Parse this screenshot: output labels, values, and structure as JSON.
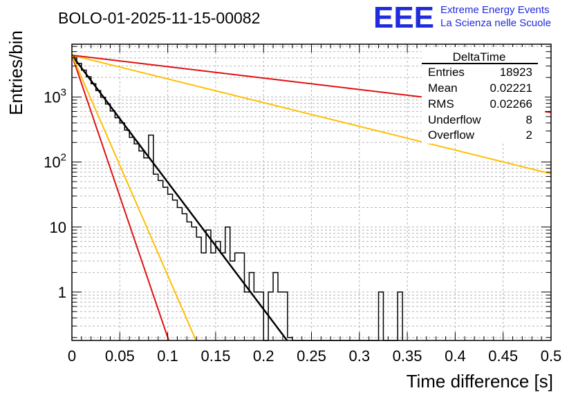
{
  "chart_data": {
    "type": "histogram",
    "title": "BOLO-01-2025-11-15-00082",
    "xlabel": "Time difference [s]",
    "ylabel": "Entries/bin",
    "xlim": [
      0,
      0.5
    ],
    "ylim": [
      0.18,
      6500
    ],
    "yscale": "log",
    "grid": true,
    "x_ticks": [
      {
        "value": 0,
        "label": "0"
      },
      {
        "value": 0.05,
        "label": "0.05"
      },
      {
        "value": 0.1,
        "label": "0.1"
      },
      {
        "value": 0.15,
        "label": "0.15"
      },
      {
        "value": 0.2,
        "label": "0.2"
      },
      {
        "value": 0.25,
        "label": "0.25"
      },
      {
        "value": 0.3,
        "label": "0.3"
      },
      {
        "value": 0.35,
        "label": "0.35"
      },
      {
        "value": 0.4,
        "label": "0.4"
      },
      {
        "value": 0.45,
        "label": "0.45"
      },
      {
        "value": 0.5,
        "label": "0.5"
      }
    ],
    "y_ticks": [
      {
        "value": 1,
        "label": "1"
      },
      {
        "value": 10,
        "label": "10"
      },
      {
        "value": 100,
        "label": "10",
        "exponent": "2"
      },
      {
        "value": 1000,
        "label": "10",
        "exponent": "3"
      }
    ],
    "histogram": {
      "name": "DeltaTime",
      "bin_width": 0.005,
      "x_start": 0,
      "values": [
        4200,
        3300,
        2600,
        2050,
        1600,
        1260,
        990,
        780,
        610,
        480,
        400,
        310,
        240,
        190,
        148,
        116,
        260,
        65,
        52,
        41,
        32,
        26,
        20,
        16,
        12,
        10,
        7,
        4,
        9,
        4,
        6,
        4,
        10,
        3,
        4,
        4,
        1,
        2,
        1,
        1,
        0,
        1,
        2,
        1,
        1,
        0.2,
        0.18,
        0,
        0,
        0,
        0,
        0,
        0,
        0,
        0,
        0,
        0,
        0,
        0,
        0,
        0,
        0,
        0,
        0,
        1,
        0,
        0,
        0,
        1
      ]
    },
    "fit_functions": [
      {
        "name": "fit",
        "color": "#000000",
        "amplitude": 4400,
        "slope": -45
      },
      {
        "name": "red-steep",
        "color": "#e01010",
        "amplitude": 4400,
        "slope": -100
      },
      {
        "name": "orange-steep",
        "color": "#ffbf00",
        "amplitude": 4400,
        "slope": -78
      },
      {
        "name": "orange-shallow",
        "color": "#ffbf00",
        "amplitude": 4400,
        "slope": -8.4
      },
      {
        "name": "red-shallow",
        "color": "#e01010",
        "amplitude": 4400,
        "slope": -4.05
      }
    ],
    "stats": {
      "title": "DeltaTime",
      "rows": [
        {
          "label": "Entries",
          "value": "18923"
        },
        {
          "label": "Mean",
          "value": "0.02221"
        },
        {
          "label": "RMS",
          "value": "0.02266"
        },
        {
          "label": "Underflow",
          "value": "8"
        },
        {
          "label": "Overflow",
          "value": "2"
        }
      ]
    }
  },
  "logo": {
    "text": "EEE",
    "line1": "Extreme Energy Events",
    "line2": "La Scienza nelle Scuole",
    "color": "#1f2bdc"
  }
}
